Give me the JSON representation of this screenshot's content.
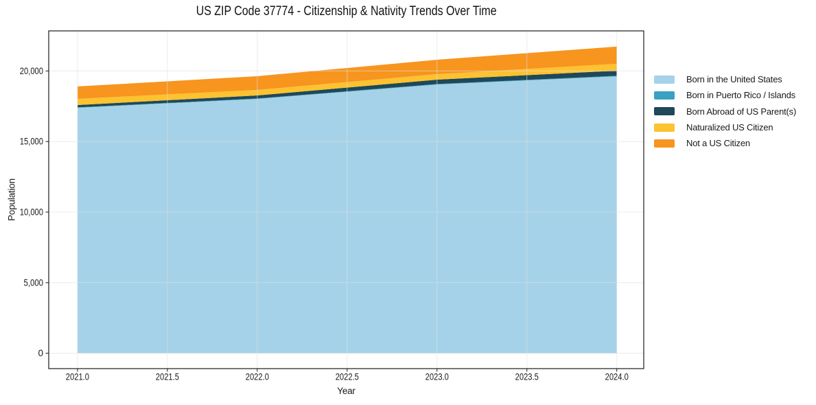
{
  "title": "US ZIP Code 37774 - Citizenship & Nativity Trends Over Time",
  "chart_data": {
    "type": "area",
    "stacked": true,
    "title": "US ZIP Code 37774 - Citizenship & Nativity Trends Over Time",
    "xlabel": "Year",
    "ylabel": "Population",
    "x": [
      2021,
      2022,
      2023,
      2024
    ],
    "series": [
      {
        "name": "Born in the United States",
        "color": "#a5d2e8",
        "values": [
          17390,
          18020,
          19040,
          19620
        ]
      },
      {
        "name": "Born in Puerto Rico / Islands",
        "color": "#3aa1c2",
        "values": [
          30,
          30,
          35,
          40
        ]
      },
      {
        "name": "Born Abroad of US Parent(s)",
        "color": "#1f4858",
        "values": [
          170,
          215,
          310,
          360
        ]
      },
      {
        "name": "Naturalized US Citizen",
        "color": "#fdc230",
        "values": [
          435,
          390,
          390,
          490
        ]
      },
      {
        "name": "Not a US Citizen",
        "color": "#f7951f",
        "values": [
          880,
          975,
          1020,
          1220
        ]
      }
    ],
    "totals": [
      18905,
      19630,
      20795,
      21730
    ],
    "xticks": [
      2021.0,
      2021.5,
      2022.0,
      2022.5,
      2023.0,
      2023.5,
      2024.0
    ],
    "xtick_labels": [
      "2021.0",
      "2021.5",
      "2022.0",
      "2022.5",
      "2023.0",
      "2023.5",
      "2024.0"
    ],
    "yticks": [
      0,
      5000,
      10000,
      15000,
      20000
    ],
    "ytick_labels": [
      "0",
      "5,000",
      "10,000",
      "15,000",
      "20,000"
    ],
    "xlim": [
      2020.84,
      2024.15
    ],
    "ylim": [
      -1090,
      22840
    ],
    "grid": true,
    "legend_position": "right",
    "legend_frame": false
  },
  "colors": {
    "background": "#ffffff",
    "grid": "#e0e0e0",
    "spine": "#1a1a1a",
    "text": "#1a1a1a"
  }
}
